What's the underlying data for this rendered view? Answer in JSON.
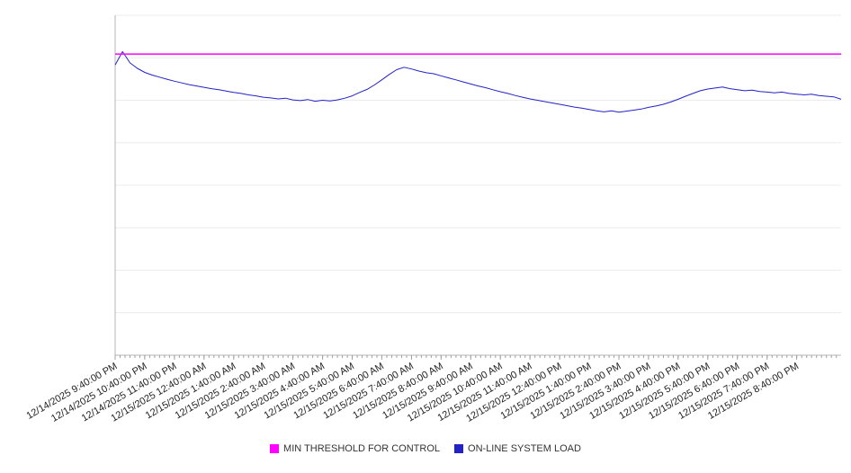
{
  "chart_data": {
    "type": "line",
    "title": "",
    "xlabel": "",
    "ylabel": "",
    "ylim": [
      0,
      100
    ],
    "x_range_hours": 24.5,
    "x_minor_tick_hours": 0.1667,
    "grid": true,
    "legend_position": "bottom",
    "y_gridlines": [
      12.5,
      25,
      37.5,
      50,
      62.5,
      75,
      87.5,
      100
    ],
    "colors": {
      "grid": "#ececec",
      "axis": "#b5b5b5",
      "tick": "#a0a0a0",
      "label": "#222222"
    },
    "x_labels": [
      "12/14/2025 9:40:00 PM",
      "12/14/2025 10:40:00 PM",
      "12/14/2025 11:40:00 PM",
      "12/15/2025 12:40:00 AM",
      "12/15/2025 1:40:00 AM",
      "12/15/2025 2:40:00 AM",
      "12/15/2025 3:40:00 AM",
      "12/15/2025 4:40:00 AM",
      "12/15/2025 5:40:00 AM",
      "12/15/2025 6:40:00 AM",
      "12/15/2025 7:40:00 AM",
      "12/15/2025 8:40:00 AM",
      "12/15/2025 9:40:00 AM",
      "12/15/2025 10:40:00 AM",
      "12/15/2025 11:40:00 AM",
      "12/15/2025 12:40:00 PM",
      "12/15/2025 1:40:00 PM",
      "12/15/2025 2:40:00 PM",
      "12/15/2025 3:40:00 PM",
      "12/15/2025 4:40:00 PM",
      "12/15/2025 5:40:00 PM",
      "12/15/2025 6:40:00 PM",
      "12/15/2025 7:40:00 PM",
      "12/15/2025 8:40:00 PM"
    ],
    "series": [
      {
        "name": "MIN THRESHOLD FOR CONTROL",
        "type": "constant",
        "color": "#ff00ff",
        "value": 88.6
      },
      {
        "name": "ON-LINE SYSTEM LOAD",
        "type": "line",
        "color": "#2222c8",
        "x_step_hours": 0.25,
        "values": [
          85.4,
          89.3,
          86.0,
          84.4,
          83.2,
          82.4,
          81.8,
          81.2,
          80.6,
          80.1,
          79.6,
          79.2,
          78.8,
          78.4,
          78.1,
          77.7,
          77.3,
          77.0,
          76.6,
          76.3,
          75.9,
          75.7,
          75.4,
          75.6,
          75.1,
          74.9,
          75.2,
          74.7,
          75.0,
          74.8,
          75.1,
          75.6,
          76.3,
          77.3,
          78.2,
          79.5,
          81.0,
          82.6,
          84.0,
          84.7,
          84.2,
          83.6,
          83.1,
          82.8,
          82.2,
          81.6,
          81.0,
          80.4,
          79.8,
          79.2,
          78.7,
          78.1,
          77.5,
          77.0,
          76.4,
          75.9,
          75.4,
          75.0,
          74.6,
          74.2,
          73.8,
          73.4,
          73.0,
          72.7,
          72.3,
          71.9,
          71.6,
          71.9,
          71.5,
          71.8,
          72.1,
          72.4,
          72.9,
          73.3,
          73.8,
          74.5,
          75.3,
          76.2,
          77.0,
          77.8,
          78.3,
          78.6,
          78.9,
          78.4,
          78.1,
          77.8,
          78.0,
          77.6,
          77.4,
          77.2,
          77.4,
          77.0,
          76.8,
          76.6,
          76.8,
          76.4,
          76.2,
          76.0,
          75.3
        ]
      }
    ]
  }
}
